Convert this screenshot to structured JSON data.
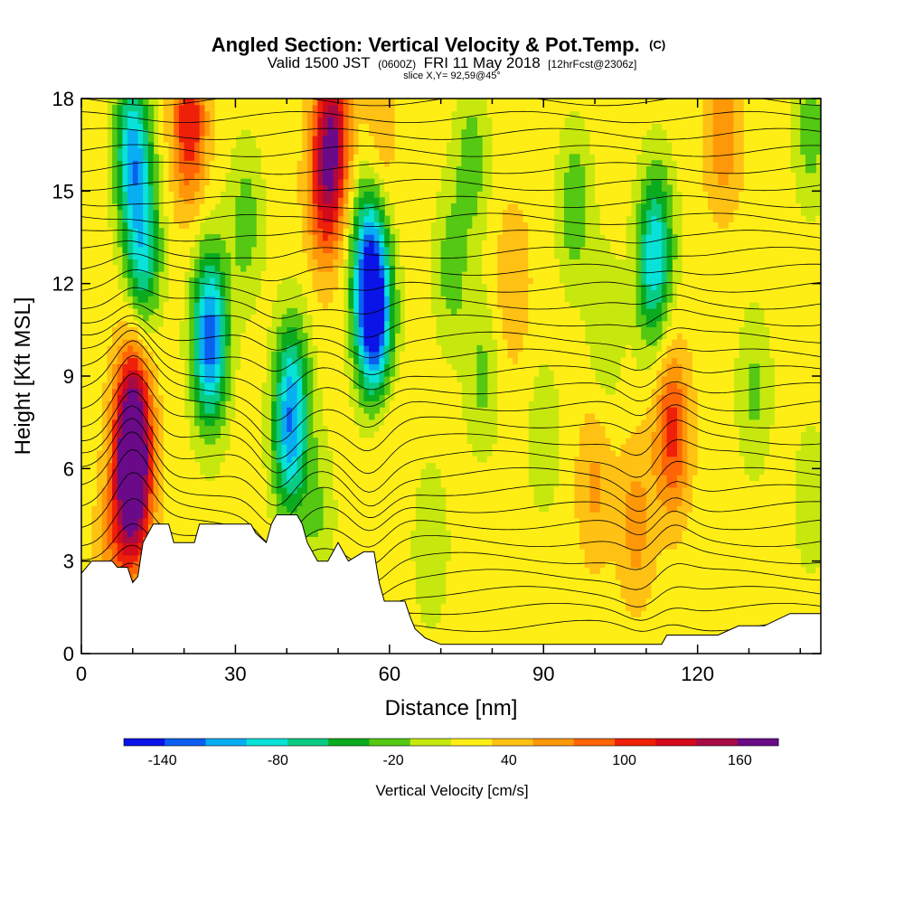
{
  "chart_data": {
    "type": "heatmap",
    "title": {
      "main": "Angled Section: Vertical Velocity & Pot.Temp.",
      "unit_tag": "(C)"
    },
    "subtitle": {
      "valid": "Valid 1500 JST",
      "utc": "(0600Z)",
      "date": "FRI 11 May 2018",
      "forecast": "[12hrFcst@2306z]"
    },
    "slice": "slice X,Y= 92,59@45°",
    "xlabel": "Distance [nm]",
    "ylabel": "Height [Kft MSL]",
    "xlim": [
      0,
      144
    ],
    "ylim": [
      0,
      18
    ],
    "x_ticks": [
      "0",
      "30",
      "60",
      "90",
      "120"
    ],
    "x_tick_values": [
      0,
      30,
      60,
      90,
      120
    ],
    "y_ticks": [
      "0",
      "3",
      "6",
      "9",
      "12",
      "15",
      "18"
    ],
    "y_tick_values": [
      0,
      3,
      6,
      9,
      12,
      15,
      18
    ],
    "colorbar": {
      "title": "Vertical Velocity [cm/s]",
      "labels": [
        "-140",
        "-80",
        "-20",
        "40",
        "100",
        "160"
      ],
      "label_values": [
        -140,
        -80,
        -20,
        40,
        100,
        160
      ],
      "range": [
        -160,
        180
      ],
      "step": 20,
      "colors": [
        "#0a14e6",
        "#0a5ef0",
        "#08aef2",
        "#08e2d8",
        "#0acb82",
        "#0aab1e",
        "#54c812",
        "#c6e80e",
        "#ffee16",
        "#ffc114",
        "#ff9808",
        "#ff6406",
        "#ee2008",
        "#d20a1c",
        "#a80a44",
        "#6a0a88"
      ]
    },
    "terrain_kft": [
      [
        0,
        2.6
      ],
      [
        2,
        3.0
      ],
      [
        6,
        3.0
      ],
      [
        7,
        2.8
      ],
      [
        9,
        2.8
      ],
      [
        10,
        2.3
      ],
      [
        11,
        2.5
      ],
      [
        12,
        3.6
      ],
      [
        13,
        3.9
      ],
      [
        14,
        4.2
      ],
      [
        17,
        4.2
      ],
      [
        18,
        3.6
      ],
      [
        22,
        3.6
      ],
      [
        23,
        4.2
      ],
      [
        33,
        4.2
      ],
      [
        34,
        3.9
      ],
      [
        36,
        3.6
      ],
      [
        37,
        4.2
      ],
      [
        38,
        4.5
      ],
      [
        42,
        4.5
      ],
      [
        43,
        4.2
      ],
      [
        44,
        3.6
      ],
      [
        46,
        3.0
      ],
      [
        48,
        3.0
      ],
      [
        50,
        3.6
      ],
      [
        52,
        3.0
      ],
      [
        55,
        3.3
      ],
      [
        57,
        3.3
      ],
      [
        58,
        2.3
      ],
      [
        59,
        1.7
      ],
      [
        63,
        1.7
      ],
      [
        64,
        1.2
      ],
      [
        65,
        0.8
      ],
      [
        67,
        0.5
      ],
      [
        70,
        0.3
      ],
      [
        113,
        0.3
      ],
      [
        114,
        0.6
      ],
      [
        124,
        0.6
      ],
      [
        128,
        0.9
      ],
      [
        133,
        0.9
      ],
      [
        138,
        1.3
      ],
      [
        144,
        1.3
      ]
    ],
    "velocity_features": [
      {
        "x": 10,
        "h": 5.5,
        "value": 165
      },
      {
        "x": 10,
        "h": 7.8,
        "value": 110
      },
      {
        "x": 21,
        "h": 17.2,
        "value": 90
      },
      {
        "x": 49,
        "h": 17.0,
        "value": 100
      },
      {
        "x": 47.5,
        "h": 15.0,
        "value": 80
      },
      {
        "x": 115,
        "h": 7.2,
        "value": 80
      },
      {
        "x": 125,
        "h": 17.0,
        "value": 50
      },
      {
        "x": 100,
        "h": 5.5,
        "value": 35
      },
      {
        "x": 59,
        "h": 8.2,
        "value": 30
      },
      {
        "x": 58,
        "h": 16.5,
        "value": 30
      },
      {
        "x": 6,
        "h": 3.3,
        "value": 35
      },
      {
        "x": 84,
        "h": 12.0,
        "value": 30
      },
      {
        "x": 108,
        "h": 4.2,
        "value": 40
      },
      {
        "x": 10,
        "h": 16.3,
        "value": -115
      },
      {
        "x": 12,
        "h": 13.0,
        "value": -90
      },
      {
        "x": 25,
        "h": 9.5,
        "value": -80
      },
      {
        "x": 25,
        "h": 11.0,
        "value": -75
      },
      {
        "x": 41,
        "h": 8.5,
        "value": -85
      },
      {
        "x": 40.5,
        "h": 6.5,
        "value": -70
      },
      {
        "x": 56.5,
        "h": 11.2,
        "value": -130
      },
      {
        "x": 56,
        "h": 13.3,
        "value": -80
      },
      {
        "x": 58,
        "h": 10.0,
        "value": -70
      },
      {
        "x": 112,
        "h": 13.5,
        "value": -70
      },
      {
        "x": 111,
        "h": 12.0,
        "value": -50
      },
      {
        "x": 96,
        "h": 14.5,
        "value": -45
      },
      {
        "x": 72,
        "h": 12.5,
        "value": -40
      },
      {
        "x": 76,
        "h": 16.0,
        "value": -40
      },
      {
        "x": 32,
        "h": 14.0,
        "value": -40
      },
      {
        "x": 131,
        "h": 8.5,
        "value": -35
      },
      {
        "x": 78,
        "h": 9.0,
        "value": -35
      },
      {
        "x": 102,
        "h": 10.5,
        "value": -30
      },
      {
        "x": 68,
        "h": 3.5,
        "value": -30
      },
      {
        "x": 142,
        "h": 17.0,
        "value": -40
      },
      {
        "x": 142,
        "h": 5.0,
        "value": -25
      },
      {
        "x": 90,
        "h": 7.0,
        "value": -25
      },
      {
        "x": 46,
        "h": 4.5,
        "value": -30
      }
    ],
    "theta_contours": {
      "base_h": 0.9,
      "spacing_kft": 0.55,
      "count": 32,
      "bumps": [
        {
          "x": 10,
          "h": 6.0,
          "amp": 1.8
        },
        {
          "x": 38,
          "h": 7.0,
          "amp": -1.2
        },
        {
          "x": 56,
          "h": 11.0,
          "amp": -1.0
        },
        {
          "x": 110,
          "h": 11.0,
          "amp": -0.9
        },
        {
          "x": 114,
          "h": 3.0,
          "amp": 0.8
        }
      ]
    }
  }
}
